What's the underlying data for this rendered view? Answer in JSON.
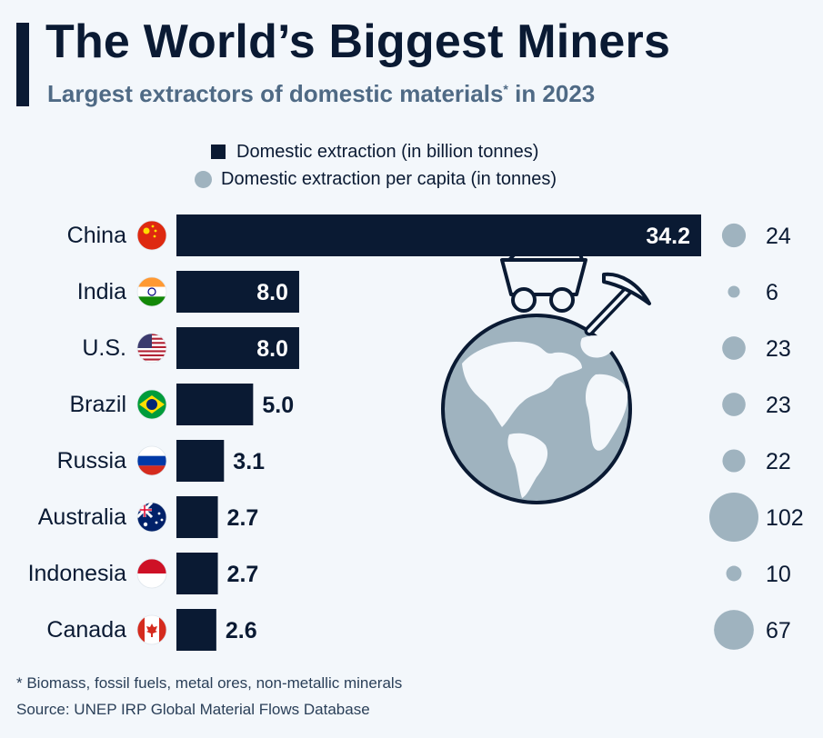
{
  "header": {
    "title": "The World’s Biggest Miners",
    "subtitle": "Largest extractors of domestic materials",
    "subtitle_mark": "*",
    "subtitle_suffix": " in 2023"
  },
  "legend": {
    "bar_label": "Domestic extraction (in billion tonnes)",
    "bubble_label": "Domestic extraction per capita (in tonnes)"
  },
  "footer": {
    "footnote": "* Biomass, fossil fuels, metal ores, non-metallic minerals",
    "source": "Source: UNEP IRP Global Material Flows Database"
  },
  "colors": {
    "bar": "#0a1a33",
    "bubble": "#9fb3bf",
    "background": "#f3f7fb",
    "globe": "#9fb3bf"
  },
  "chart_data": {
    "type": "bar",
    "orientation": "horizontal",
    "categories": [
      "China",
      "India",
      "U.S.",
      "Brazil",
      "Russia",
      "Australia",
      "Indonesia",
      "Canada"
    ],
    "flags": [
      "china-flag",
      "india-flag",
      "us-flag",
      "brazil-flag",
      "russia-flag",
      "australia-flag",
      "indonesia-flag",
      "canada-flag"
    ],
    "series": [
      {
        "name": "Domestic extraction (in billion tonnes)",
        "values": [
          34.2,
          8.0,
          8.0,
          5.0,
          3.1,
          2.7,
          2.7,
          2.6
        ],
        "labels": [
          "34.2",
          "8.0",
          "8.0",
          "5.0",
          "3.1",
          "2.7",
          "2.7",
          "2.6"
        ]
      },
      {
        "name": "Domestic extraction per capita (in tonnes)",
        "values": [
          24,
          6,
          23,
          23,
          22,
          102,
          10,
          67
        ],
        "labels": [
          "24",
          "6",
          "23",
          "23",
          "22",
          "102",
          "10",
          "67"
        ]
      }
    ]
  }
}
